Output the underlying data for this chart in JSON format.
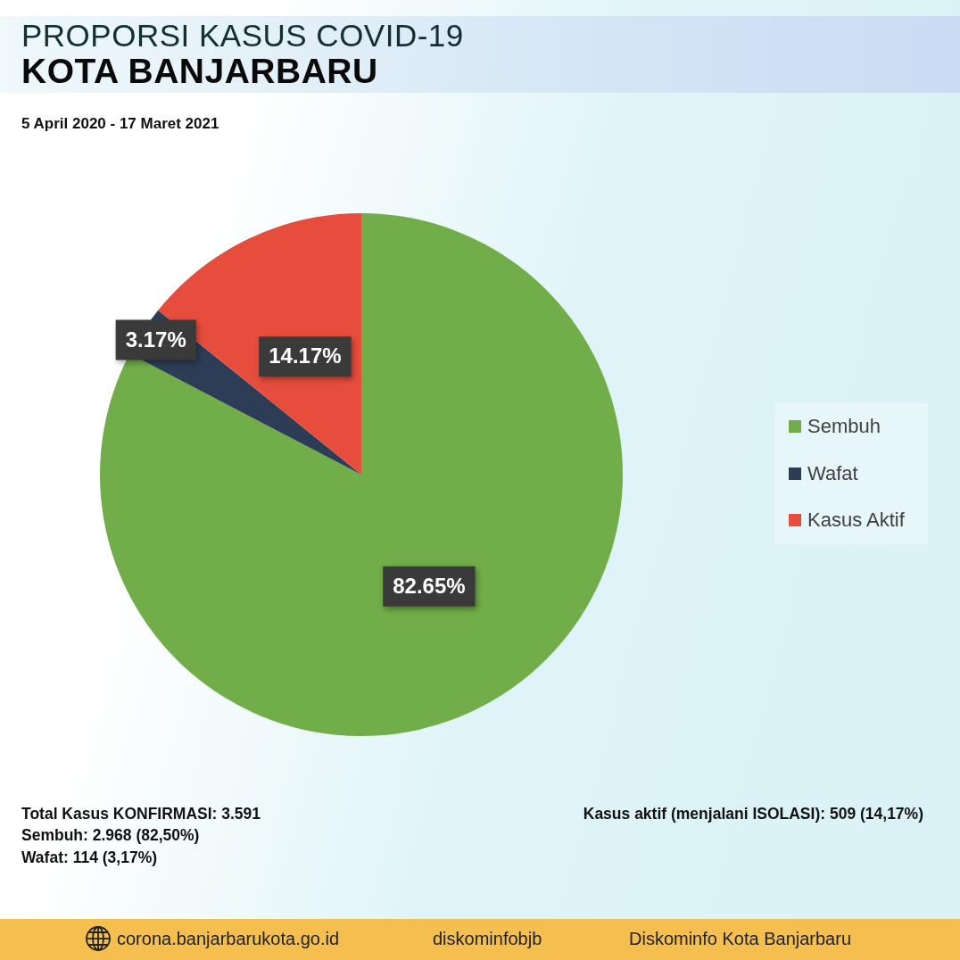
{
  "chart_data": {
    "type": "pie",
    "title": "PROPORSI KASUS COVID-19 KOTA BANJARBARU",
    "subtitle": "5 April 2020 - 17 Maret 2021",
    "categories": [
      "Sembuh",
      "Wafat",
      "Kasus Aktif"
    ],
    "values": [
      82.65,
      3.17,
      14.17
    ],
    "colors": [
      "#71ad48",
      "#2c3d55",
      "#e64d3c"
    ],
    "value_labels": [
      "82.65%",
      "3.17%",
      "14.17%"
    ],
    "legend": "right",
    "annotations": [
      "Total Kasus KONFIRMASI: 3.591",
      "Sembuh: 2.968 (82,50%)",
      "Wafat: 114 (3,17%)",
      "Kasus aktif (menjalani ISOLASI): 509 (14,17%)",
      "corona.banjarbarukota.go.id",
      "diskominfobjb",
      "Diskominfo Kota Banjarbaru"
    ]
  }
}
